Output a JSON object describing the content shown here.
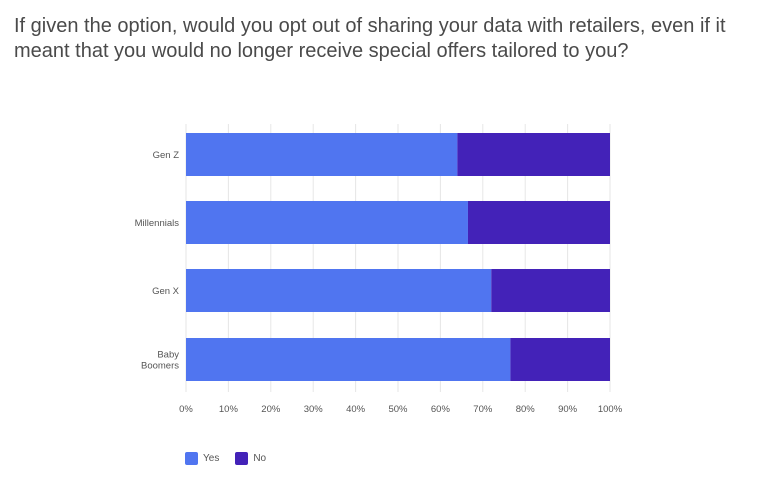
{
  "title": "If given the option, would you opt out of sharing your data with retailers, even if it meant that you would no longer receive special offers tailored to you?",
  "chart_data": {
    "type": "bar",
    "orientation": "horizontal",
    "stacked": true,
    "title": "If given the option, would you opt out of sharing your data with retailers, even if it meant that you would no longer receive special offers tailored to you?",
    "categories": [
      "Gen Z",
      "Millennials",
      "Gen X",
      "Baby Boomers"
    ],
    "category_lines": [
      [
        "Gen Z"
      ],
      [
        "Millennials"
      ],
      [
        "Gen X"
      ],
      [
        "Baby",
        "Boomers"
      ]
    ],
    "series": [
      {
        "name": "Yes",
        "color": "#5075f0",
        "values": [
          64,
          66.5,
          72,
          76.5
        ]
      },
      {
        "name": "No",
        "color": "#4322b8",
        "values": [
          36,
          33.5,
          28,
          23.5
        ]
      }
    ],
    "xlim": [
      0,
      100
    ],
    "xticks": [
      "0%",
      "10%",
      "20%",
      "30%",
      "40%",
      "50%",
      "60%",
      "70%",
      "80%",
      "90%",
      "100%"
    ],
    "grid": true,
    "legend_position": "bottom-left"
  },
  "legend": {
    "yes_label": "Yes",
    "no_label": "No",
    "yes_color": "#5075f0",
    "no_color": "#4322b8"
  }
}
